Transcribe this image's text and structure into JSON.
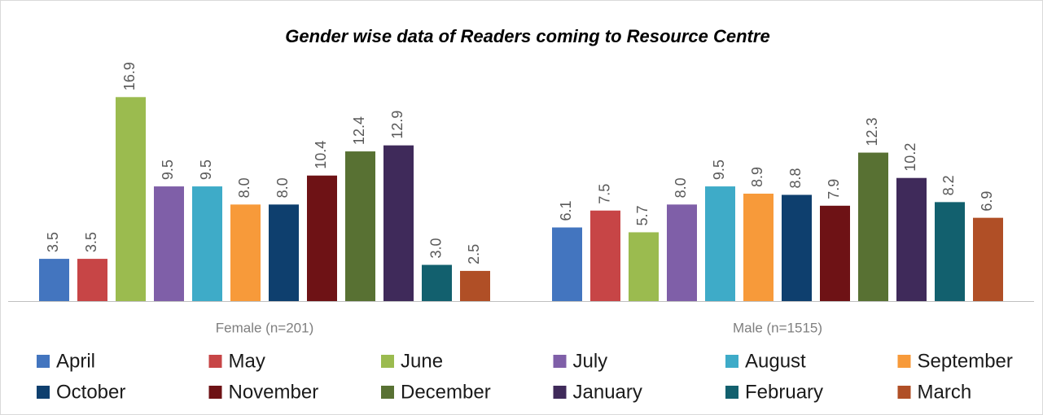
{
  "chart_data": {
    "type": "bar",
    "title": "Gender wise data of Readers coming to Resource Centre",
    "categories": [
      "Female (n=201)",
      "Male (n=1515)"
    ],
    "ylim": [
      0,
      18
    ],
    "series": [
      {
        "name": "April",
        "color": "#4375bf",
        "values": [
          3.5,
          6.1
        ],
        "value_labels": [
          "3.5",
          "6.1"
        ]
      },
      {
        "name": "May",
        "color": "#c74546",
        "values": [
          3.5,
          7.5
        ],
        "value_labels": [
          "3.5",
          "7.5"
        ]
      },
      {
        "name": "June",
        "color": "#9bbb4f",
        "values": [
          16.9,
          5.7
        ],
        "value_labels": [
          "16.9",
          "5.7"
        ]
      },
      {
        "name": "July",
        "color": "#7f5fa8",
        "values": [
          9.5,
          8.0
        ],
        "value_labels": [
          "9.5",
          "8.0"
        ]
      },
      {
        "name": "August",
        "color": "#3eabc8",
        "values": [
          9.5,
          9.5
        ],
        "value_labels": [
          "9.5",
          "9.5"
        ]
      },
      {
        "name": "September",
        "color": "#f79a3a",
        "values": [
          8.0,
          8.9
        ],
        "value_labels": [
          "8.0",
          "8.9"
        ]
      },
      {
        "name": "October",
        "color": "#0e3f6e",
        "values": [
          8.0,
          8.8
        ],
        "value_labels": [
          "8.0",
          "8.8"
        ]
      },
      {
        "name": "November",
        "color": "#6e1215",
        "values": [
          10.4,
          7.9
        ],
        "value_labels": [
          "10.4",
          "7.9"
        ]
      },
      {
        "name": "December",
        "color": "#587133",
        "values": [
          12.4,
          12.3
        ],
        "value_labels": [
          "12.4",
          "12.3"
        ]
      },
      {
        "name": "January",
        "color": "#3f2a5a",
        "values": [
          12.9,
          10.2
        ],
        "value_labels": [
          "12.9",
          "10.2"
        ]
      },
      {
        "name": "February",
        "color": "#12606e",
        "values": [
          3.0,
          8.2
        ],
        "value_labels": [
          "3.0",
          "8.2"
        ]
      },
      {
        "name": "March",
        "color": "#b04f26",
        "values": [
          2.5,
          6.9
        ],
        "value_labels": [
          "2.5",
          "6.9"
        ]
      }
    ]
  }
}
